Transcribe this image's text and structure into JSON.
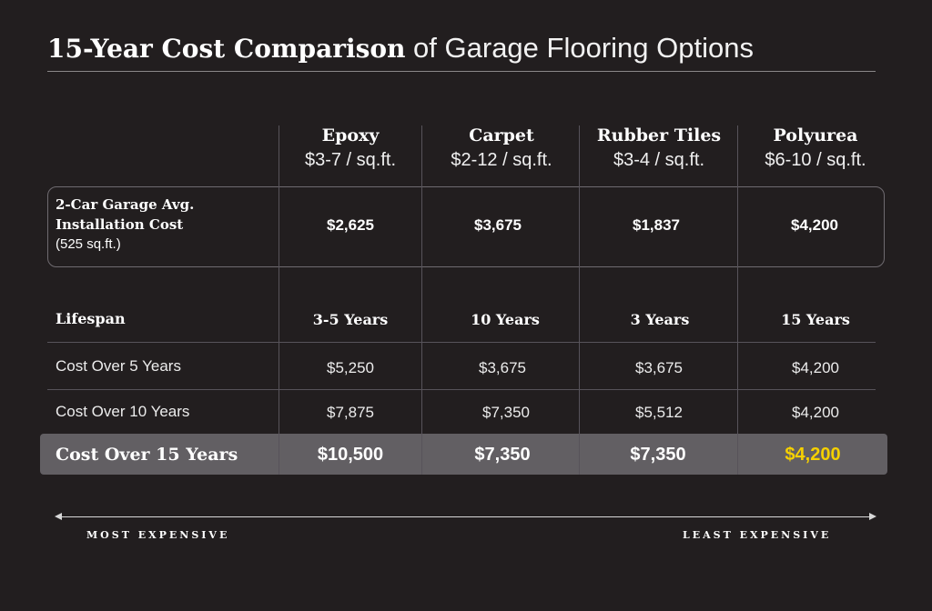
{
  "colors": {
    "background": "#221e1f",
    "text": "#ffffff",
    "highlight_row": "#625f63",
    "best_value": "#f5d000",
    "divider": "#57535a"
  },
  "title": {
    "bold": "15-Year Cost Comparison",
    "regular": "of Garage Flooring Options"
  },
  "columns": [
    {
      "name": "Epoxy",
      "price": "$3-7 / sq.ft."
    },
    {
      "name": "Carpet",
      "price": "$2-12 / sq.ft."
    },
    {
      "name": "Rubber Tiles",
      "price": "$3-4 / sq.ft."
    },
    {
      "name": "Polyurea",
      "price": "$6-10 / sq.ft."
    }
  ],
  "install": {
    "label_line1": "2-Car Garage Avg.",
    "label_line2": "Installation Cost",
    "label_line3": "(525 sq.ft.)",
    "values": [
      "$2,625",
      "$3,675",
      "$1,837",
      "$4,200"
    ]
  },
  "lifespan": {
    "label": "Lifespan",
    "values": [
      "3-5 Years",
      "10 Years",
      "3 Years",
      "15 Years"
    ]
  },
  "cost5": {
    "label": "Cost Over 5 Years",
    "values": [
      "$5,250",
      "$3,675",
      "$3,675",
      "$4,200"
    ]
  },
  "cost10": {
    "label": "Cost Over 10 Years",
    "values": [
      "$7,875",
      "$7,350",
      "$5,512",
      "$4,200"
    ]
  },
  "cost15": {
    "label": "Cost Over 15 Years",
    "values": [
      "$10,500",
      "$7,350",
      "$7,350",
      "$4,200"
    ]
  },
  "scale": {
    "left": "MOST EXPENSIVE",
    "right": "LEAST EXPENSIVE"
  }
}
